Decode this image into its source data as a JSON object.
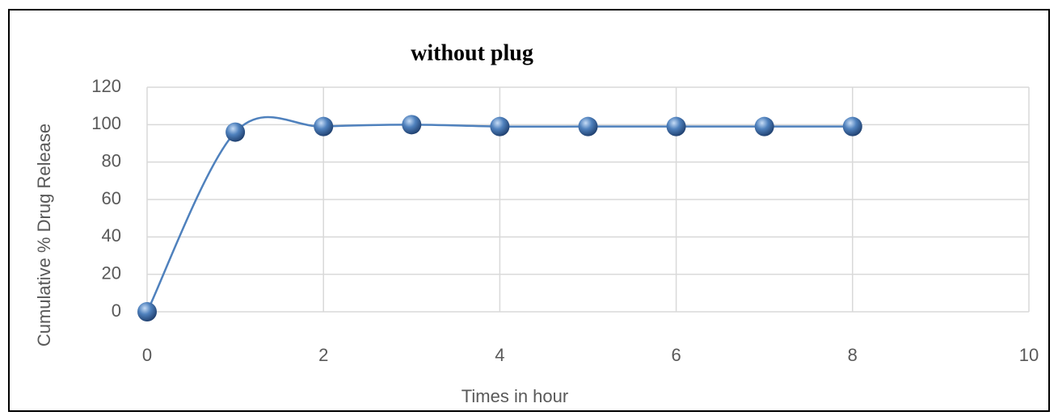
{
  "chart_data": {
    "type": "line",
    "title": "without plug",
    "x_label": "Times in hour",
    "y_label": "Cumulative % Drug Release",
    "x": [
      0,
      1,
      2,
      3,
      4,
      5,
      6,
      7,
      8
    ],
    "values": [
      0,
      96,
      99,
      100,
      99,
      99,
      99,
      99,
      99
    ],
    "color": "#4f81bd",
    "xlim": [
      0,
      10
    ],
    "xticks": [
      0,
      2,
      4,
      6,
      8,
      10
    ],
    "ylim": [
      0,
      120
    ],
    "yticks": [
      0,
      20,
      40,
      60,
      80,
      100,
      120
    ],
    "grid": true,
    "smooth": true
  }
}
